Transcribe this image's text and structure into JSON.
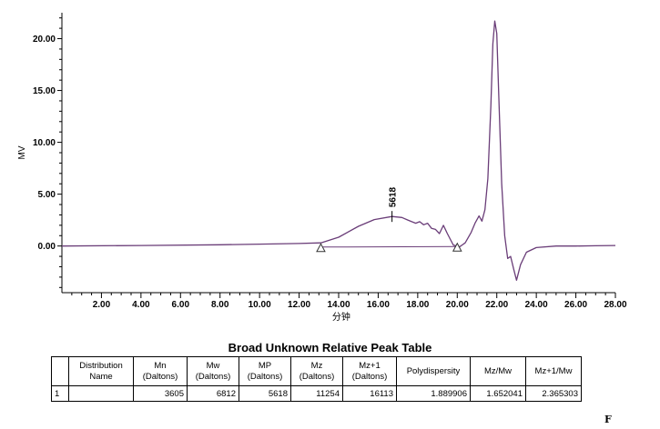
{
  "chart_data": {
    "type": "line",
    "title": "",
    "xlabel": "分钟",
    "ylabel": "MV",
    "xlim": [
      0,
      28
    ],
    "ylim": [
      -4.5,
      22.5
    ],
    "x_ticks": [
      "2.00",
      "4.00",
      "6.00",
      "8.00",
      "10.00",
      "12.00",
      "14.00",
      "16.00",
      "18.00",
      "20.00",
      "22.00",
      "24.00",
      "26.00",
      "28.00"
    ],
    "y_ticks": [
      "0.00",
      "5.00",
      "10.00",
      "15.00",
      "20.00"
    ],
    "grid": false,
    "series": [
      {
        "x": [
          0.0,
          4.0,
          8.0,
          10.0,
          12.0,
          13.1,
          14.0,
          15.0,
          15.8,
          16.7,
          17.2,
          17.5,
          17.7,
          17.9,
          18.1,
          18.3,
          18.5,
          18.7,
          18.9,
          19.1,
          19.3,
          19.5,
          19.8,
          20.1,
          20.4,
          20.7,
          20.9,
          21.1,
          21.25,
          21.4,
          21.55,
          21.7,
          21.8,
          21.9,
          22.0,
          22.1,
          22.25,
          22.4,
          22.55,
          22.7,
          22.85,
          23.0,
          23.2,
          23.5,
          24.0,
          25.0,
          26.0,
          27.0,
          28.0
        ],
        "y": [
          0.0,
          0.05,
          0.12,
          0.18,
          0.24,
          0.3,
          0.85,
          1.9,
          2.55,
          2.85,
          2.75,
          2.5,
          2.35,
          2.2,
          2.35,
          2.05,
          2.2,
          1.7,
          1.6,
          1.2,
          2.0,
          1.2,
          0.1,
          -0.1,
          0.3,
          1.3,
          2.2,
          2.9,
          2.4,
          3.5,
          6.5,
          13.5,
          19.5,
          21.7,
          20.5,
          14.5,
          6.0,
          1.0,
          -1.2,
          -1.0,
          -2.2,
          -3.3,
          -1.8,
          -0.6,
          -0.15,
          0.0,
          0.0,
          0.02,
          0.05
        ]
      }
    ],
    "baseline": {
      "x": [
        13.1,
        20.0
      ],
      "y": [
        -0.1,
        -0.05
      ]
    },
    "peak_label": {
      "text": "5618",
      "x": 16.7,
      "y": 2.85
    }
  },
  "table": {
    "title": "Broad Unknown Relative Peak Table",
    "headers": [
      [
        "",
        ""
      ],
      [
        "Distribution",
        "Name"
      ],
      [
        "Mn",
        "(Daltons)"
      ],
      [
        "Mw",
        "(Daltons)"
      ],
      [
        "MP",
        "(Daltons)"
      ],
      [
        "Mz",
        "(Daltons)"
      ],
      [
        "Mz+1",
        "(Daltons)"
      ],
      [
        "Polydispersity",
        ""
      ],
      [
        "Mz/Mw",
        ""
      ],
      [
        "Mz+1/Mw",
        ""
      ]
    ],
    "rows": [
      [
        "1",
        "",
        "3605",
        "6812",
        "5618",
        "11254",
        "16113",
        "1.889906",
        "1.652041",
        "2.365303"
      ]
    ]
  },
  "corner_mark": "F",
  "colors": {
    "trace": "#6a3d78",
    "axis": "#000000"
  }
}
